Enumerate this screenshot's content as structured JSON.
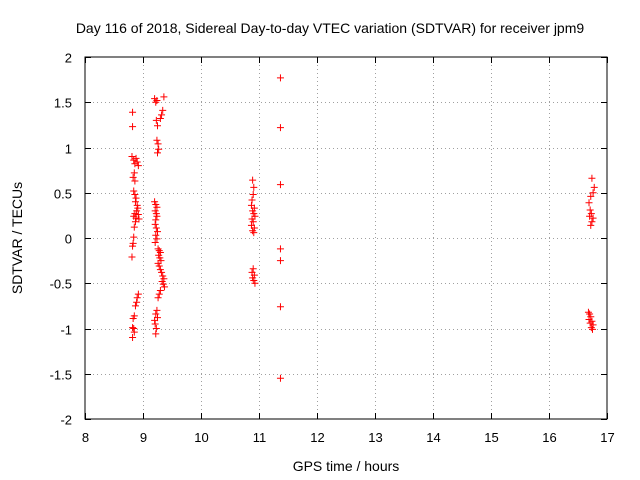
{
  "chart_data": {
    "type": "scatter",
    "title": "Day 116 of 2018, Sidereal Day-to-day VTEC variation (SDTVAR) for receiver jpm9",
    "xlabel": "GPS time / hours",
    "ylabel": "SDTVAR / TECUs",
    "xlim": [
      8,
      17
    ],
    "ylim": [
      -2,
      2
    ],
    "xticks": [
      8,
      9,
      10,
      11,
      12,
      13,
      14,
      15,
      16,
      17
    ],
    "yticks": [
      -2,
      -1.5,
      -1,
      -0.5,
      0,
      0.5,
      1,
      1.5,
      2
    ],
    "xtick_labels": [
      "8",
      "9",
      "10",
      "11",
      "12",
      "13",
      "14",
      "15",
      "16",
      "17"
    ],
    "ytick_labels": [
      "-2",
      "-1.5",
      "-1",
      "-0.5",
      "0",
      "0.5",
      "1",
      "1.5",
      "2"
    ],
    "grid": true,
    "marker": "plus",
    "marker_color": "#ff0000",
    "points": [
      [
        8.82,
        1.39
      ],
      [
        8.82,
        1.23
      ],
      [
        8.81,
        0.9
      ],
      [
        8.84,
        0.86
      ],
      [
        8.86,
        0.82
      ],
      [
        8.88,
        0.88
      ],
      [
        8.9,
        0.84
      ],
      [
        8.92,
        0.8
      ],
      [
        8.85,
        0.72
      ],
      [
        8.83,
        0.67
      ],
      [
        8.86,
        0.63
      ],
      [
        8.84,
        0.52
      ],
      [
        8.86,
        0.48
      ],
      [
        8.88,
        0.44
      ],
      [
        8.87,
        0.4
      ],
      [
        8.9,
        0.36
      ],
      [
        8.91,
        0.33
      ],
      [
        8.89,
        0.3
      ],
      [
        8.86,
        0.27
      ],
      [
        8.84,
        0.24
      ],
      [
        8.88,
        0.22
      ],
      [
        8.92,
        0.26
      ],
      [
        8.93,
        0.21
      ],
      [
        8.87,
        0.18
      ],
      [
        8.85,
        0.12
      ],
      [
        8.84,
        0.01
      ],
      [
        8.83,
        -0.06
      ],
      [
        8.82,
        -0.09
      ],
      [
        8.81,
        -0.21
      ],
      [
        8.92,
        -0.62
      ],
      [
        8.9,
        -0.66
      ],
      [
        8.89,
        -0.71
      ],
      [
        8.87,
        -0.75
      ],
      [
        8.85,
        -0.86
      ],
      [
        8.83,
        -0.89
      ],
      [
        8.82,
        -0.99
      ],
      [
        8.84,
        -1.0
      ],
      [
        8.85,
        -1.04
      ],
      [
        8.82,
        -1.1
      ],
      [
        9.2,
        1.54
      ],
      [
        9.22,
        1.5
      ],
      [
        9.24,
        1.52
      ],
      [
        9.36,
        1.56
      ],
      [
        9.34,
        1.41
      ],
      [
        9.32,
        1.36
      ],
      [
        9.3,
        1.32
      ],
      [
        9.23,
        1.3
      ],
      [
        9.25,
        1.24
      ],
      [
        9.24,
        1.08
      ],
      [
        9.26,
        1.04
      ],
      [
        9.27,
        0.98
      ],
      [
        9.25,
        0.94
      ],
      [
        9.2,
        0.4
      ],
      [
        9.22,
        0.37
      ],
      [
        9.24,
        0.34
      ],
      [
        9.21,
        0.3
      ],
      [
        9.23,
        0.27
      ],
      [
        9.24,
        0.24
      ],
      [
        9.22,
        0.2
      ],
      [
        9.21,
        0.15
      ],
      [
        9.23,
        0.11
      ],
      [
        9.25,
        0.07
      ],
      [
        9.22,
        0.03
      ],
      [
        9.24,
        -0.01
      ],
      [
        9.21,
        -0.05
      ],
      [
        9.26,
        -0.12
      ],
      [
        9.28,
        -0.14
      ],
      [
        9.3,
        -0.16
      ],
      [
        9.27,
        -0.19
      ],
      [
        9.29,
        -0.22
      ],
      [
        9.31,
        -0.25
      ],
      [
        9.26,
        -0.28
      ],
      [
        9.28,
        -0.31
      ],
      [
        9.3,
        -0.35
      ],
      [
        9.32,
        -0.38
      ],
      [
        9.34,
        -0.42
      ],
      [
        9.36,
        -0.45
      ],
      [
        9.33,
        -0.48
      ],
      [
        9.35,
        -0.51
      ],
      [
        9.37,
        -0.54
      ],
      [
        9.3,
        -0.58
      ],
      [
        9.28,
        -0.62
      ],
      [
        9.26,
        -0.66
      ],
      [
        9.24,
        -0.8
      ],
      [
        9.22,
        -0.84
      ],
      [
        9.25,
        -0.88
      ],
      [
        9.2,
        -0.91
      ],
      [
        9.21,
        -0.95
      ],
      [
        9.23,
        -1.0
      ],
      [
        9.22,
        -1.06
      ],
      [
        10.89,
        0.64
      ],
      [
        10.91,
        0.56
      ],
      [
        10.9,
        0.48
      ],
      [
        10.88,
        0.42
      ],
      [
        10.87,
        0.36
      ],
      [
        10.92,
        0.33
      ],
      [
        10.89,
        0.3
      ],
      [
        10.91,
        0.27
      ],
      [
        10.93,
        0.24
      ],
      [
        10.88,
        0.21
      ],
      [
        10.9,
        0.18
      ],
      [
        10.87,
        0.14
      ],
      [
        10.92,
        0.11
      ],
      [
        10.89,
        0.08
      ],
      [
        10.91,
        0.06
      ],
      [
        10.9,
        -0.34
      ],
      [
        10.88,
        -0.38
      ],
      [
        10.92,
        -0.41
      ],
      [
        10.89,
        -0.44
      ],
      [
        10.91,
        -0.47
      ],
      [
        10.93,
        -0.5
      ],
      [
        11.37,
        1.77
      ],
      [
        11.37,
        1.22
      ],
      [
        11.37,
        0.59
      ],
      [
        11.37,
        -0.12
      ],
      [
        11.37,
        -0.25
      ],
      [
        11.37,
        -0.76
      ],
      [
        11.37,
        -1.55
      ],
      [
        16.74,
        0.66
      ],
      [
        16.78,
        0.56
      ],
      [
        16.76,
        0.5
      ],
      [
        16.72,
        0.46
      ],
      [
        16.69,
        0.39
      ],
      [
        16.71,
        0.31
      ],
      [
        16.73,
        0.27
      ],
      [
        16.7,
        0.24
      ],
      [
        16.76,
        0.22
      ],
      [
        16.74,
        0.18
      ],
      [
        16.72,
        0.14
      ],
      [
        16.68,
        -0.82
      ],
      [
        16.7,
        -0.84
      ],
      [
        16.72,
        -0.87
      ],
      [
        16.69,
        -0.9
      ],
      [
        16.74,
        -0.92
      ],
      [
        16.71,
        -0.94
      ],
      [
        16.76,
        -0.96
      ],
      [
        16.73,
        -0.99
      ],
      [
        16.75,
        -1.01
      ]
    ]
  }
}
